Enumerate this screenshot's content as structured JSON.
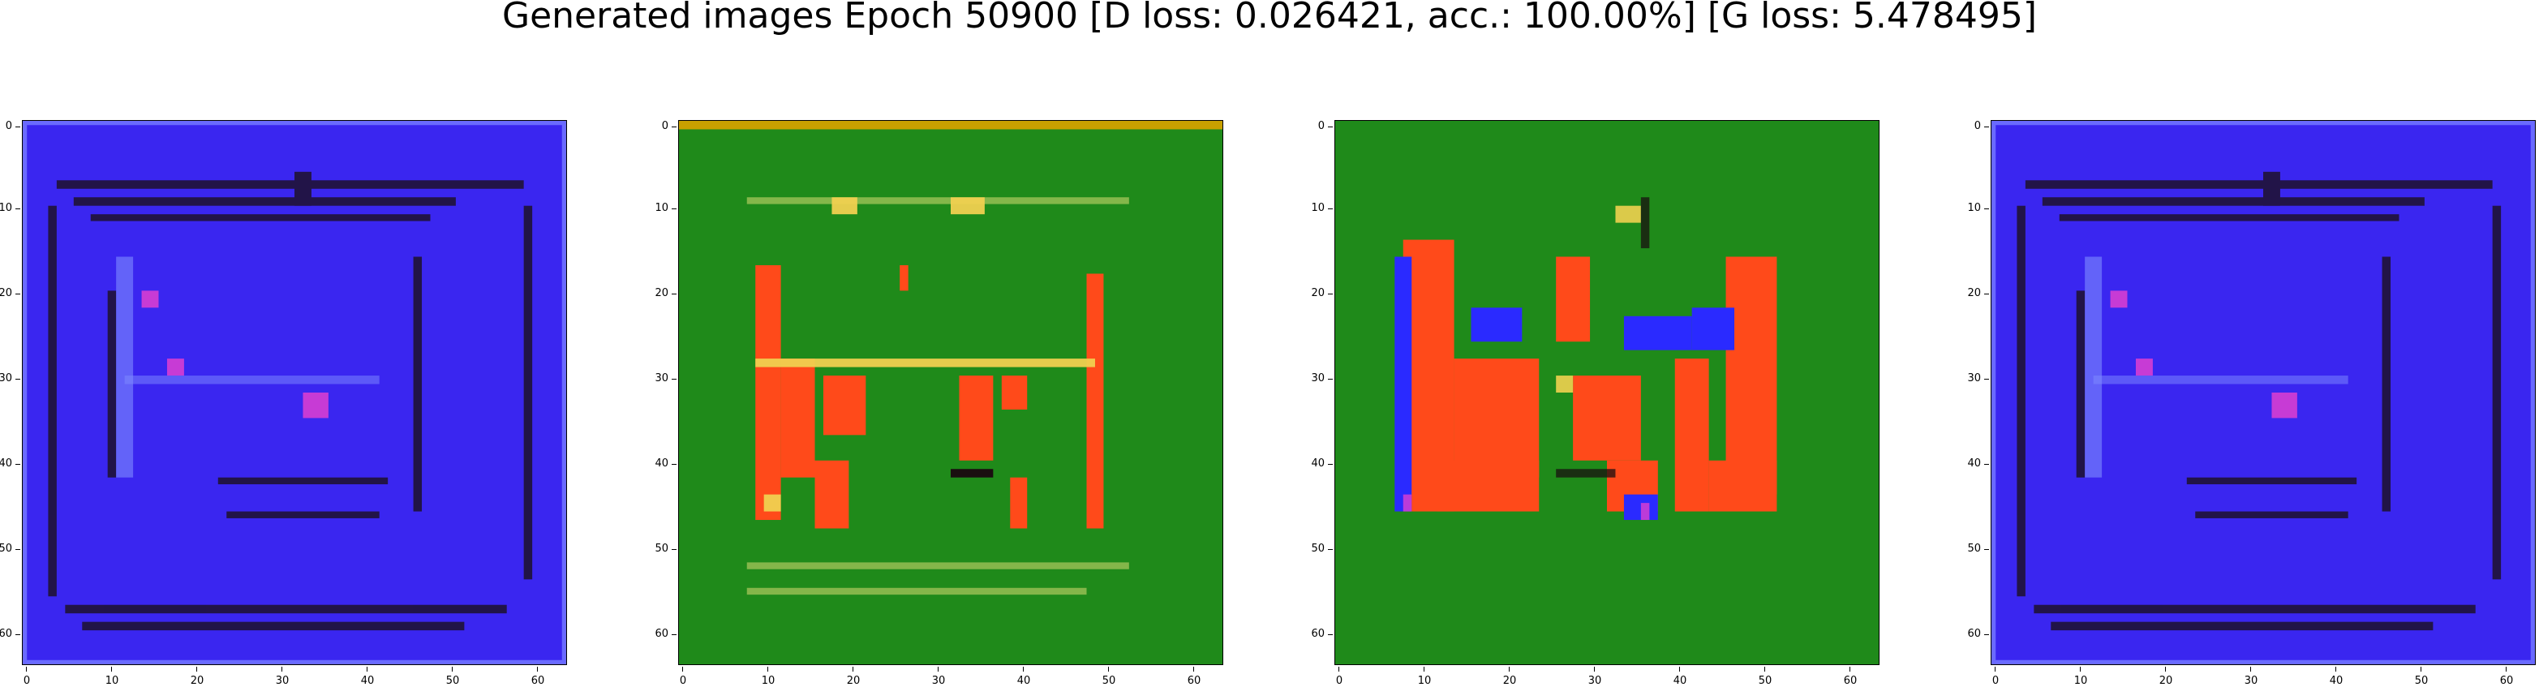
{
  "figure": {
    "title": "Generated images Epoch 50900 [D loss: 0.026421, acc.: 100.00%] [G loss: 5.478495]"
  },
  "axes": {
    "y_ticks": [
      "0",
      "10",
      "20",
      "30",
      "40",
      "50",
      "60"
    ],
    "x_ticks": [
      "0",
      "10",
      "20",
      "30",
      "40",
      "50",
      "60"
    ]
  },
  "panels": [
    {
      "label": "generated-image-1",
      "scheme": "blue"
    },
    {
      "label": "generated-image-2",
      "scheme": "green-a"
    },
    {
      "label": "generated-image-3",
      "scheme": "green-b"
    },
    {
      "label": "generated-image-4",
      "scheme": "blue"
    }
  ],
  "colors": {
    "blue_bg": "#3a26f0",
    "green_bg": "#1f8a1a",
    "orange": "#ff4a1a",
    "dark": "#1a0f10",
    "magenta": "#e040d0",
    "yellow": "#f0d050",
    "blue_blob": "#2a2aff"
  }
}
